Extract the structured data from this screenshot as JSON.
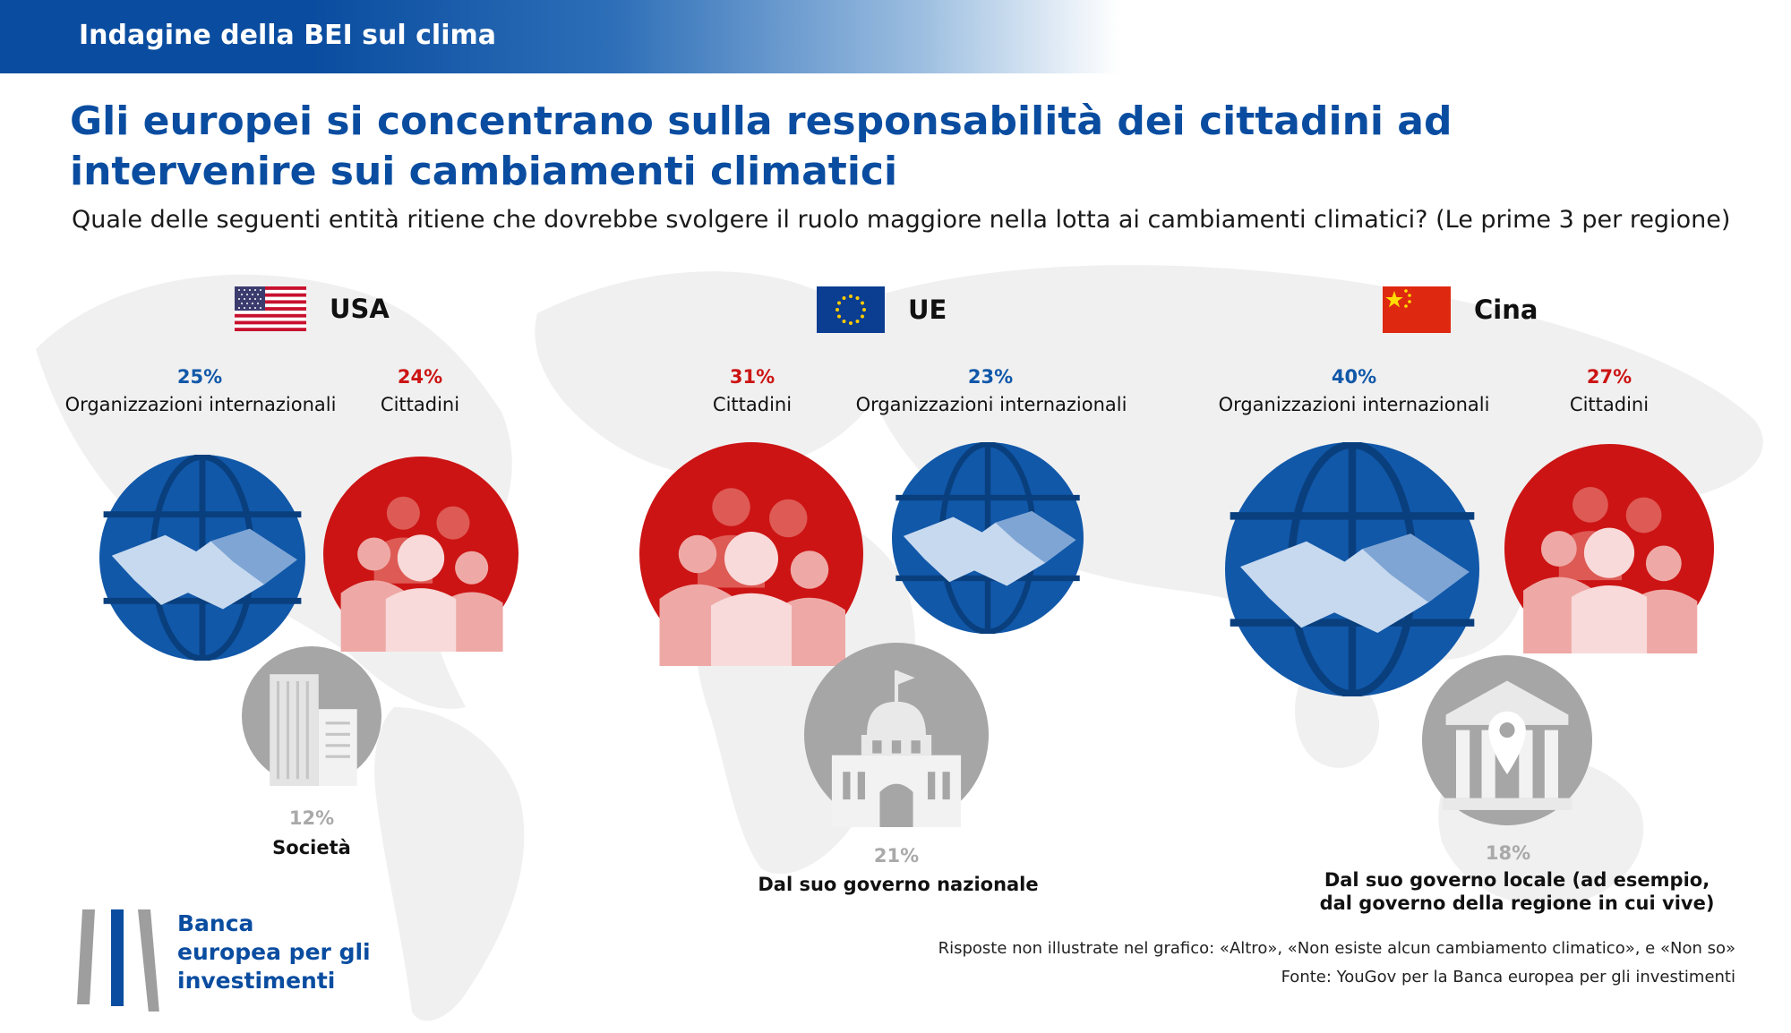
{
  "header": {
    "banner": "Indagine della BEI sul clima"
  },
  "title": "Gli europei si concentrano sulla responsabilità dei cittadini ad intervenire sui cambiamenti climatici",
  "subtitle": "Quale delle seguenti entità ritiene che dovrebbe svolgere il ruolo maggiore nella lotta ai cambiamenti climatici? (Le prime 3 per regione)",
  "colors": {
    "blue": "#1158a9",
    "red": "#cc1414",
    "grey": "#a6a6a6"
  },
  "chart_data": {
    "type": "bubble",
    "regions": [
      {
        "name": "USA",
        "items": [
          {
            "label": "Organizzazioni internazionali",
            "pct": "25%",
            "value": 25,
            "icon": "handshake-globe-icon",
            "color": "blue"
          },
          {
            "label": "Cittadini",
            "pct": "24%",
            "value": 24,
            "icon": "people-icon",
            "color": "red"
          },
          {
            "label": "Società",
            "pct": "12%",
            "value": 12,
            "icon": "office-buildings-icon",
            "color": "grey"
          }
        ]
      },
      {
        "name": "UE",
        "items": [
          {
            "label": "Cittadini",
            "pct": "31%",
            "value": 31,
            "icon": "people-icon",
            "color": "red"
          },
          {
            "label": "Organizzazioni internazionali",
            "pct": "23%",
            "value": 23,
            "icon": "handshake-globe-icon",
            "color": "blue"
          },
          {
            "label": "Dal suo governo nazionale",
            "pct": "21%",
            "value": 21,
            "icon": "capitol-building-icon",
            "color": "grey"
          }
        ]
      },
      {
        "name": "Cina",
        "items": [
          {
            "label": "Organizzazioni internazionali",
            "pct": "40%",
            "value": 40,
            "icon": "handshake-globe-icon",
            "color": "blue"
          },
          {
            "label": "Cittadini",
            "pct": "27%",
            "value": 27,
            "icon": "people-icon",
            "color": "red"
          },
          {
            "label": "Dal suo governo locale (ad esempio, dal governo della regione in cui vive)",
            "label_line1": "Dal suo governo locale (ad esempio,",
            "label_line2": "dal governo della regione in cui vive)",
            "pct": "18%",
            "value": 18,
            "icon": "local-government-icon",
            "color": "grey"
          }
        ]
      }
    ]
  },
  "logo": {
    "line1": "Banca",
    "line2": "europea per gli",
    "line3": "investimenti"
  },
  "footer": {
    "note": "Risposte non illustrate nel grafico: «Altro», «Non esiste alcun cambiamento climatico», e «Non so»",
    "source": "Fonte: YouGov per la Banca europea per gli investimenti"
  }
}
